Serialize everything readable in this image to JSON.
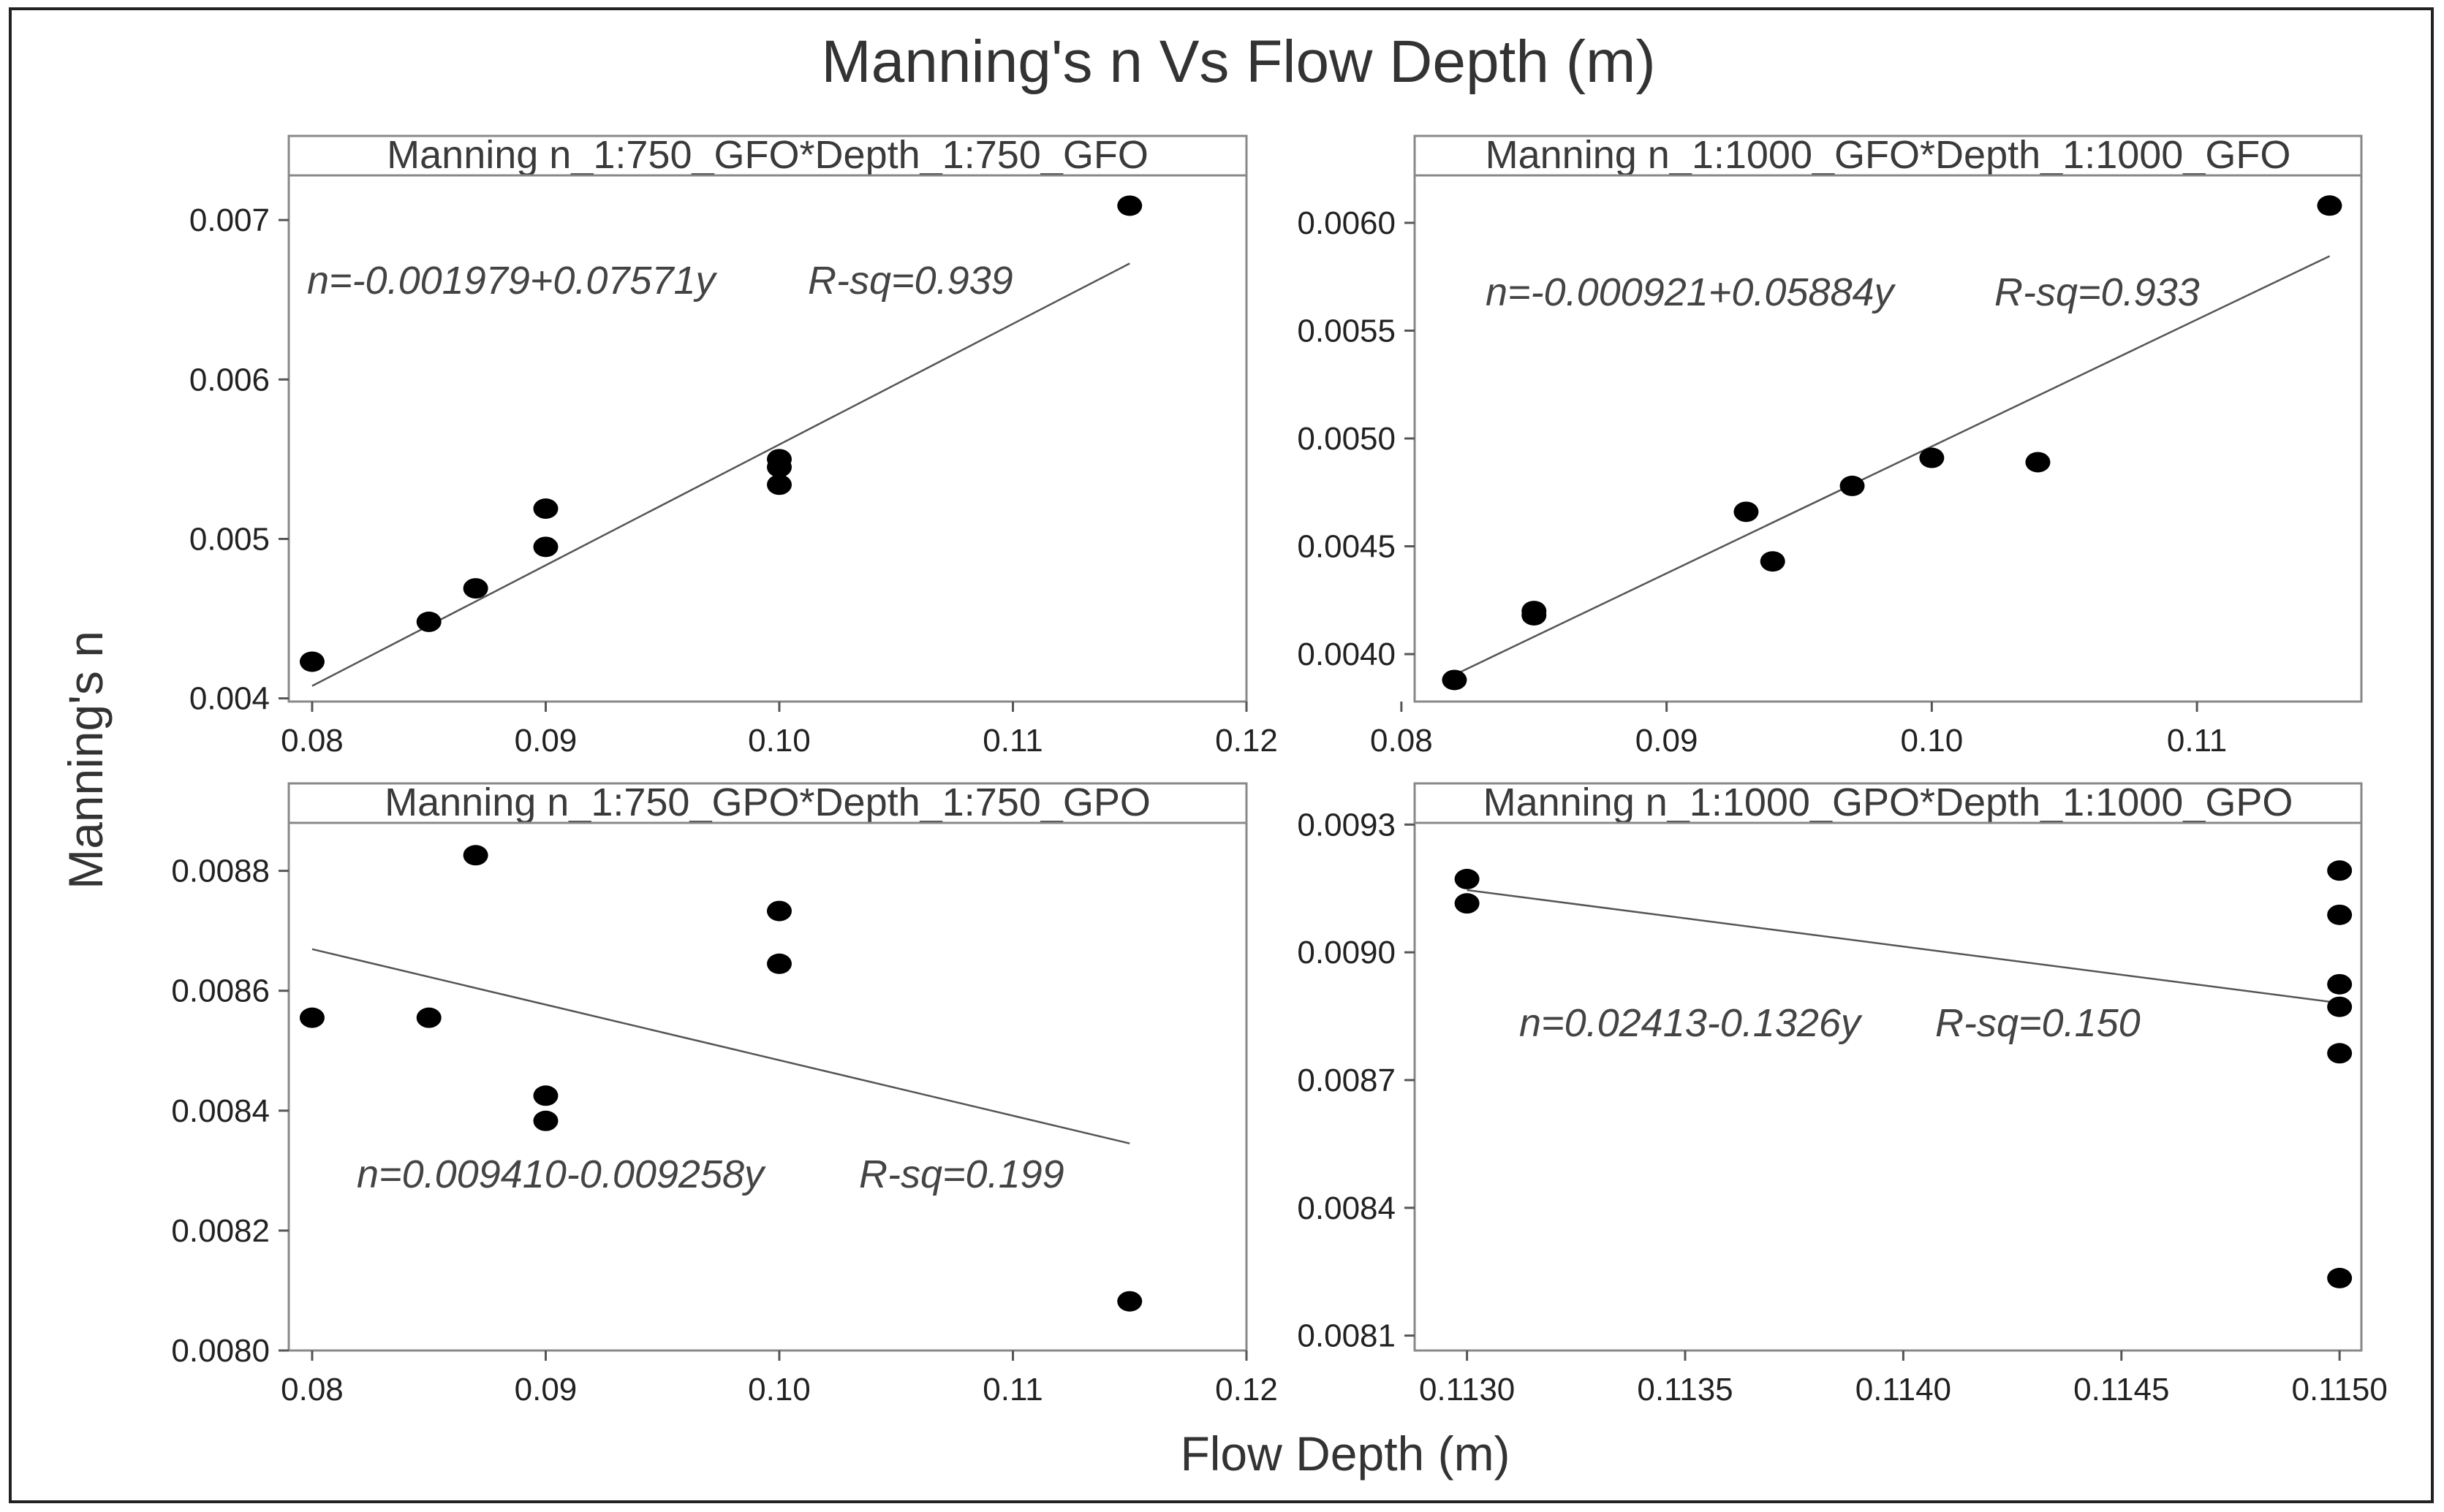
{
  "figure_title": "Manning's n Vs Flow Depth (m)",
  "xlabel": "Flow Depth (m)",
  "ylabel": "Manning's n",
  "colors": {
    "points": "#000000",
    "fit_line": "#555555",
    "frame": "#222222",
    "axis": "#888888"
  },
  "chart_data": [
    {
      "type": "scatter",
      "title": "Manning n_1:750_GFO*Depth_1:750_GFO",
      "equation": "n=-0.001979+0.07571y",
      "rsq": "R-sq=0.939",
      "xlim": [
        0.079,
        0.12
      ],
      "ylim": [
        0.00398,
        0.00728
      ],
      "xticks": [
        0.08,
        0.09,
        0.1,
        0.11,
        0.12
      ],
      "xtick_labels": [
        "0.08",
        "0.09",
        "0.10",
        "0.11",
        "0.12"
      ],
      "yticks": [
        0.004,
        0.005,
        0.006,
        0.007
      ],
      "ytick_labels": [
        "0.004",
        "0.005",
        "0.006",
        "0.007"
      ],
      "points": [
        {
          "x": 0.08,
          "y": 0.00423
        },
        {
          "x": 0.085,
          "y": 0.00448
        },
        {
          "x": 0.087,
          "y": 0.00469
        },
        {
          "x": 0.09,
          "y": 0.00495
        },
        {
          "x": 0.09,
          "y": 0.00519
        },
        {
          "x": 0.1,
          "y": 0.00534
        },
        {
          "x": 0.1,
          "y": 0.00545
        },
        {
          "x": 0.1,
          "y": 0.0055
        },
        {
          "x": 0.115,
          "y": 0.00709
        }
      ],
      "fit": {
        "intercept": -0.001979,
        "slope": 0.07571,
        "x_range": [
          0.08,
          0.115
        ]
      }
    },
    {
      "type": "scatter",
      "title": "Manning n_1:1000_GFO*Depth_1:1000_GFO",
      "equation": "n=-0.000921+0.05884y",
      "rsq": "R-sq=0.933",
      "xlim": [
        0.0805,
        0.1162
      ],
      "ylim": [
        0.00378,
        0.00622
      ],
      "xticks": [
        0.08,
        0.09,
        0.1,
        0.11
      ],
      "xtick_labels": [
        "0.08",
        "0.09",
        "0.10",
        "0.11"
      ],
      "yticks": [
        0.004,
        0.0045,
        0.005,
        0.0055,
        0.006
      ],
      "ytick_labels": [
        "0.0040",
        "0.0045",
        "0.0050",
        "0.0055",
        "0.0060"
      ],
      "points": [
        {
          "x": 0.082,
          "y": 0.00388
        },
        {
          "x": 0.085,
          "y": 0.00418
        },
        {
          "x": 0.085,
          "y": 0.0042
        },
        {
          "x": 0.093,
          "y": 0.00466
        },
        {
          "x": 0.094,
          "y": 0.00443
        },
        {
          "x": 0.097,
          "y": 0.00478
        },
        {
          "x": 0.1,
          "y": 0.00491
        },
        {
          "x": 0.104,
          "y": 0.00489
        },
        {
          "x": 0.115,
          "y": 0.00608
        }
      ],
      "fit": {
        "intercept": -0.000921,
        "slope": 0.05884,
        "x_range": [
          0.082,
          0.115
        ]
      }
    },
    {
      "type": "scatter",
      "title": "Manning n_1:750_GPO*Depth_1:750_GPO",
      "equation": "n=0.009410-0.009258y",
      "rsq": "R-sq=0.199",
      "xlim": [
        0.079,
        0.12
      ],
      "ylim": [
        0.008,
        0.00888
      ],
      "xticks": [
        0.08,
        0.09,
        0.1,
        0.11,
        0.12
      ],
      "xtick_labels": [
        "0.08",
        "0.09",
        "0.10",
        "0.11",
        "0.12"
      ],
      "yticks": [
        0.008,
        0.0082,
        0.0084,
        0.0086,
        0.0088
      ],
      "ytick_labels": [
        "0.0080",
        "0.0082",
        "0.0084",
        "0.0086",
        "0.0088"
      ],
      "points": [
        {
          "x": 0.08,
          "y": 0.008555
        },
        {
          "x": 0.085,
          "y": 0.008555
        },
        {
          "x": 0.087,
          "y": 0.008826
        },
        {
          "x": 0.09,
          "y": 0.008425
        },
        {
          "x": 0.09,
          "y": 0.008383
        },
        {
          "x": 0.1,
          "y": 0.008733
        },
        {
          "x": 0.1,
          "y": 0.008645
        },
        {
          "x": 0.115,
          "y": 0.008082
        }
      ],
      "fit": {
        "intercept": 0.00941,
        "slope": -0.009258,
        "x_range": [
          0.08,
          0.115
        ]
      }
    },
    {
      "type": "scatter",
      "title": "Manning n_1:1000_GPO*Depth_1:1000_GPO",
      "equation": "n=0.02413-0.1326y",
      "rsq": "R-sq=0.150",
      "xlim": [
        0.11288,
        0.11505
      ],
      "ylim": [
        0.008065,
        0.009304
      ],
      "xticks": [
        0.113,
        0.1135,
        0.114,
        0.1145,
        0.115
      ],
      "xtick_labels": [
        "0.1130",
        "0.1135",
        "0.1140",
        "0.1145",
        "0.1150"
      ],
      "yticks": [
        0.0081,
        0.0084,
        0.0087,
        0.009,
        0.0093
      ],
      "ytick_labels": [
        "0.0081",
        "0.0084",
        "0.0087",
        "0.0090",
        "0.0093"
      ],
      "points": [
        {
          "x": 0.113,
          "y": 0.009172
        },
        {
          "x": 0.113,
          "y": 0.009115
        },
        {
          "x": 0.115,
          "y": 0.009192
        },
        {
          "x": 0.115,
          "y": 0.009088
        },
        {
          "x": 0.115,
          "y": 0.008925
        },
        {
          "x": 0.115,
          "y": 0.008872
        },
        {
          "x": 0.115,
          "y": 0.008763
        },
        {
          "x": 0.115,
          "y": 0.008235
        }
      ],
      "fit": {
        "intercept": 0.02413,
        "slope": -0.1326,
        "x_range": [
          0.113,
          0.115
        ]
      }
    }
  ]
}
